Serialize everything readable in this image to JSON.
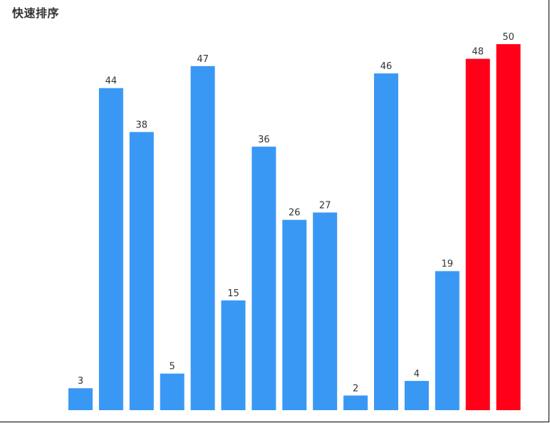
{
  "title": "快速排序",
  "chart_data": {
    "type": "bar",
    "title": "快速排序",
    "values": [
      3,
      44,
      38,
      5,
      47,
      15,
      36,
      26,
      27,
      2,
      46,
      4,
      19,
      48,
      50
    ],
    "highlighted": [
      false,
      false,
      false,
      false,
      false,
      false,
      false,
      false,
      false,
      false,
      false,
      false,
      false,
      true,
      true
    ],
    "ylim": [
      0,
      50
    ],
    "grid": false,
    "legend": "none",
    "colors": {
      "default": "#3a98f5",
      "highlight": "#ff0018"
    }
  }
}
